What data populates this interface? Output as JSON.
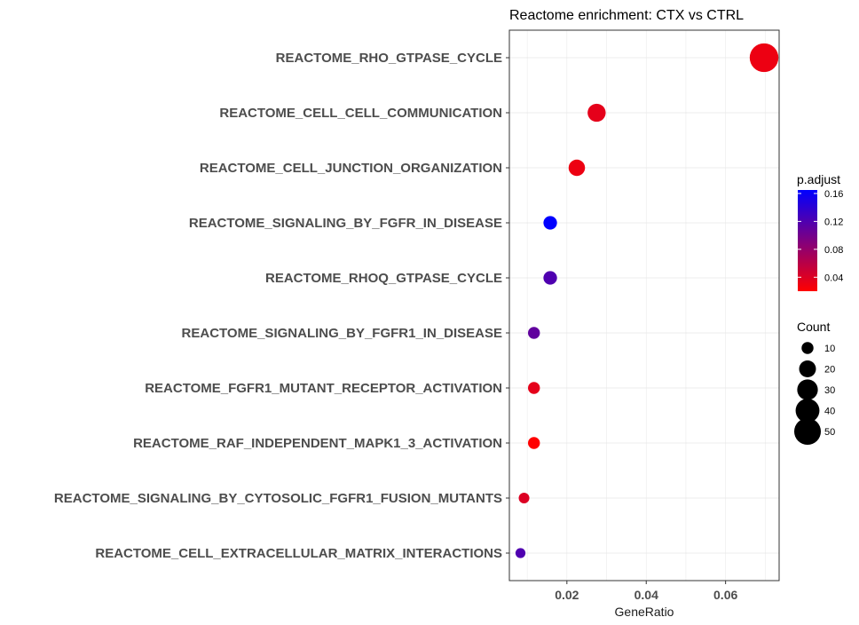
{
  "chart_data": {
    "type": "scatter",
    "title": "Reactome enrichment: CTX vs CTRL",
    "xlabel": "GeneRatio",
    "ylabel": "",
    "xlim": [
      0.0055,
      0.0735
    ],
    "x_ticks": [
      0.02,
      0.04,
      0.06
    ],
    "x_tick_labels": [
      "0.02",
      "0.04",
      "0.06"
    ],
    "categories": [
      "REACTOME_RHO_GTPASE_CYCLE",
      "REACTOME_CELL_CELL_COMMUNICATION",
      "REACTOME_CELL_JUNCTION_ORGANIZATION",
      "REACTOME_SIGNALING_BY_FGFR_IN_DISEASE",
      "REACTOME_RHOQ_GTPASE_CYCLE",
      "REACTOME_SIGNALING_BY_FGFR1_IN_DISEASE",
      "REACTOME_FGFR1_MUTANT_RECEPTOR_ACTIVATION",
      "REACTOME_RAF_INDEPENDENT_MAPK1_3_ACTIVATION",
      "REACTOME_SIGNALING_BY_CYTOSOLIC_FGFR1_FUSION_MUTANTS",
      "REACTOME_CELL_EXTRACELLULAR_MATRIX_INTERACTIONS"
    ],
    "x": [
      0.0697,
      0.0275,
      0.0225,
      0.0158,
      0.0158,
      0.0117,
      0.0117,
      0.0117,
      0.0092,
      0.0083
    ],
    "count": [
      58,
      23,
      19,
      13,
      13,
      10,
      10,
      10,
      8,
      7
    ],
    "p_adjust": [
      0.03,
      0.035,
      0.03,
      0.165,
      0.12,
      0.11,
      0.035,
      0.02,
      0.04,
      0.12
    ],
    "color_legend": {
      "title": "p.adjust",
      "range": [
        0.02,
        0.165
      ],
      "ticks": [
        0.04,
        0.08,
        0.12,
        0.16
      ],
      "tick_labels": [
        "0.04",
        "0.08",
        "0.12",
        "0.16"
      ],
      "low_color": "#ff0000",
      "high_color": "#0000ff"
    },
    "size_legend": {
      "title": "Count",
      "values": [
        10,
        20,
        30,
        40,
        50
      ],
      "labels": [
        "10",
        "20",
        "30",
        "40",
        "50"
      ]
    },
    "grid": true,
    "legend_position": "right"
  }
}
